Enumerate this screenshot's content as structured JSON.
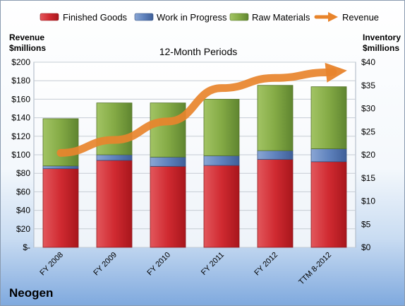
{
  "company": "Neogen",
  "chart_data": {
    "type": "bar",
    "stacked": true,
    "title": "12-Month Periods",
    "left_axis_label": [
      "Revenue",
      "$millions"
    ],
    "right_axis_label": [
      "Inventory",
      "$millions"
    ],
    "categories": [
      "FY 2008",
      "FY 2009",
      "FY 2010",
      "FY 2011",
      "FY 2012",
      "TTM 8-2012"
    ],
    "series": [
      {
        "name": "Finished Goods",
        "axis": "right",
        "color": "#cc2229",
        "values": [
          17.0,
          18.8,
          17.5,
          17.7,
          19.0,
          18.5
        ]
      },
      {
        "name": "Work in Progress",
        "axis": "right",
        "color": "#5a7fba",
        "values": [
          0.6,
          1.2,
          2.0,
          2.1,
          1.9,
          2.8
        ]
      },
      {
        "name": "Raw Materials",
        "axis": "right",
        "color": "#80a640",
        "values": [
          10.2,
          11.2,
          11.7,
          12.2,
          14.1,
          13.4
        ]
      },
      {
        "name": "Revenue",
        "axis": "left",
        "color": "#e8842c",
        "type": "line-arrow",
        "values": [
          102,
          116,
          136,
          172,
          183,
          189
        ]
      }
    ],
    "ylim_left": [
      0,
      200
    ],
    "ylim_right": [
      0,
      40
    ],
    "left_ticks": [
      "$-",
      "$20",
      "$40",
      "$60",
      "$80",
      "$100",
      "$120",
      "$140",
      "$160",
      "$180",
      "$200"
    ],
    "right_ticks": [
      "$0",
      "$5",
      "$10",
      "$15",
      "$20",
      "$25",
      "$30",
      "$35",
      "$40"
    ],
    "legend": "top",
    "grid": true
  }
}
